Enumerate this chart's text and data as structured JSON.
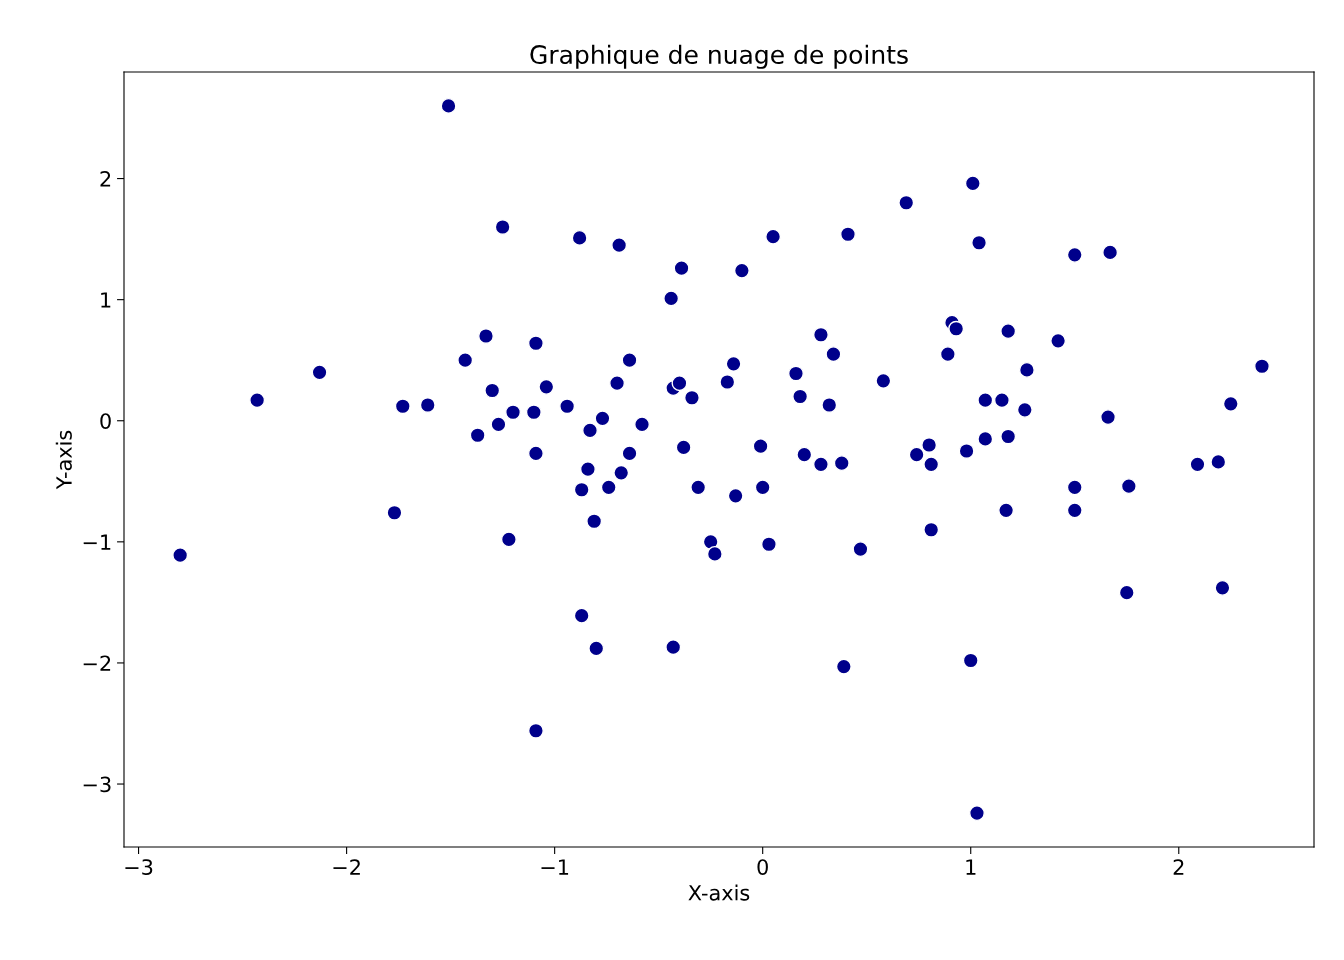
{
  "chart_data": {
    "type": "scatter",
    "title": "Graphique de nuage de points",
    "xlabel": "X-axis",
    "ylabel": "Y-axis",
    "xlim": [
      -3.07,
      2.65
    ],
    "ylim": [
      -3.52,
      2.88
    ],
    "xticks": [
      {
        "value": -3,
        "label": "−3"
      },
      {
        "value": -2,
        "label": "−2"
      },
      {
        "value": -1,
        "label": "−1"
      },
      0,
      1,
      2
    ],
    "yticks": [
      {
        "value": -3,
        "label": "−3"
      },
      {
        "value": -2,
        "label": "−2"
      },
      {
        "value": -1,
        "label": "−1"
      },
      0,
      1,
      2
    ],
    "grid": false,
    "marker": "circle",
    "series": [
      {
        "color": "#00008b",
        "x": [
          -1.51,
          -2.8,
          -2.43,
          -2.13,
          -1.77,
          -1.73,
          -1.61,
          -1.43,
          -1.33,
          -1.37,
          -1.3,
          -1.27,
          -1.25,
          -1.22,
          -1.2,
          -1.1,
          -1.09,
          -1.09,
          -1.09,
          -1.04,
          -0.94,
          -0.88,
          -0.87,
          -0.87,
          -0.84,
          -0.83,
          -0.81,
          -0.8,
          -0.77,
          -0.74,
          -0.7,
          -0.69,
          -0.68,
          -0.64,
          -0.64,
          -0.58,
          -0.44,
          -0.43,
          -0.43,
          -0.4,
          -0.39,
          -0.38,
          -0.34,
          -0.31,
          -0.25,
          -0.23,
          -0.17,
          -0.14,
          -0.13,
          -0.1,
          -0.01,
          0.0,
          0.03,
          0.05,
          0.16,
          0.18,
          0.2,
          0.28,
          0.28,
          0.32,
          0.34,
          0.38,
          0.39,
          0.41,
          0.47,
          0.58,
          0.69,
          0.74,
          0.8,
          0.81,
          0.81,
          0.89,
          0.91,
          0.93,
          0.98,
          1.0,
          1.01,
          1.03,
          1.04,
          1.07,
          1.07,
          1.15,
          1.17,
          1.18,
          1.18,
          1.26,
          1.27,
          1.42,
          1.5,
          1.5,
          1.5,
          1.66,
          1.67,
          1.75,
          1.76,
          2.09,
          2.19,
          2.21,
          2.25,
          2.4
        ],
        "values": [
          2.6,
          -1.11,
          0.17,
          0.4,
          -0.76,
          0.12,
          0.13,
          0.5,
          0.7,
          -0.12,
          0.25,
          -0.03,
          1.6,
          -0.98,
          0.07,
          0.07,
          0.64,
          -0.27,
          -2.56,
          0.28,
          0.12,
          1.51,
          -0.57,
          -1.61,
          -0.4,
          -0.08,
          -0.83,
          -1.88,
          0.02,
          -0.55,
          0.31,
          1.45,
          -0.43,
          0.5,
          -0.27,
          -0.03,
          1.01,
          0.27,
          -1.87,
          0.31,
          1.26,
          -0.22,
          0.19,
          -0.55,
          -1.0,
          -1.1,
          0.32,
          0.47,
          -0.62,
          1.24,
          -0.21,
          -0.55,
          -1.02,
          1.52,
          0.39,
          0.2,
          -0.28,
          0.71,
          -0.36,
          0.13,
          0.55,
          -0.35,
          -2.03,
          1.54,
          -1.06,
          0.33,
          1.8,
          -0.28,
          -0.2,
          -0.9,
          -0.36,
          0.55,
          0.81,
          0.76,
          -0.25,
          -1.98,
          1.96,
          -3.24,
          1.47,
          0.17,
          -0.15,
          0.17,
          -0.74,
          0.74,
          -0.13,
          0.09,
          0.42,
          0.66,
          -0.55,
          -0.74,
          1.37,
          0.03,
          1.39,
          -1.42,
          -0.54,
          -0.36,
          -0.34,
          -1.38,
          0.14,
          0.45
        ]
      }
    ]
  }
}
